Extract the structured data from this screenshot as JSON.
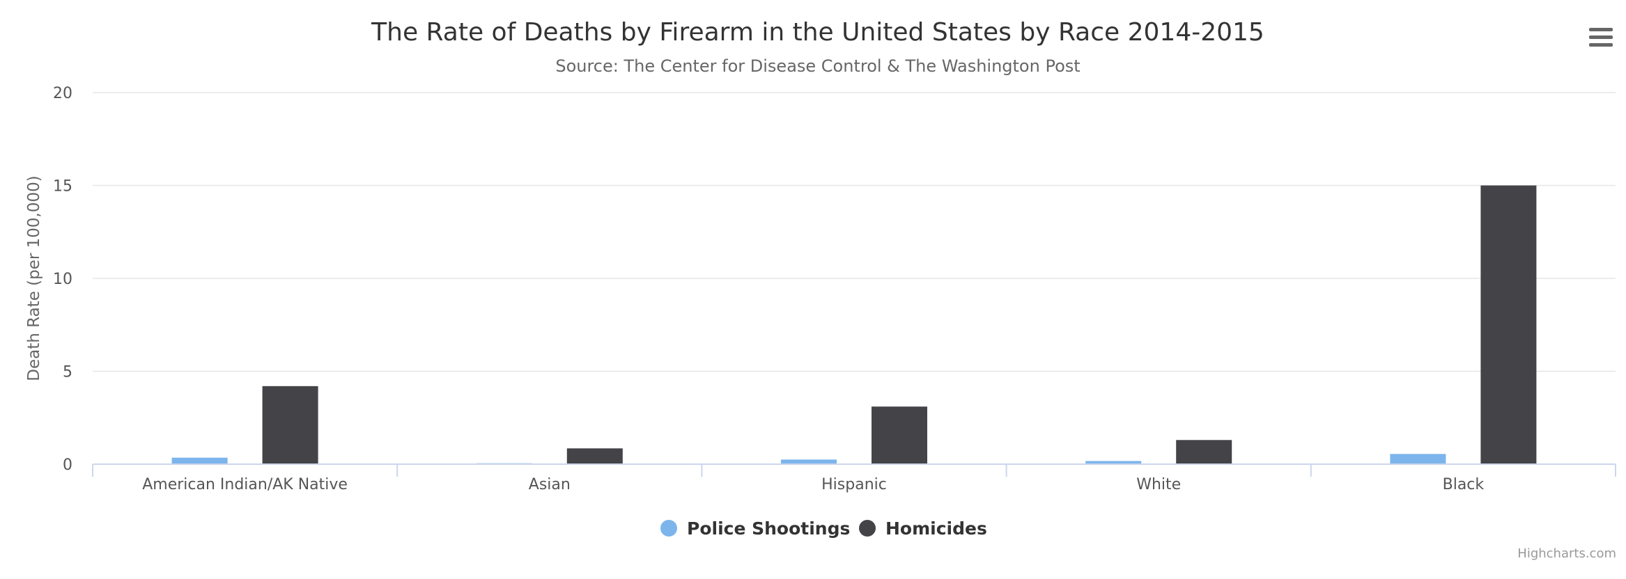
{
  "chart_data": {
    "type": "bar",
    "title": "The Rate of Deaths by Firearm in the United States by Race 2014-2015",
    "subtitle": "Source: The Center for Disease Control & The Washington Post",
    "categories": [
      "American Indian/AK Native",
      "Asian",
      "Hispanic",
      "White",
      "Black"
    ],
    "series": [
      {
        "name": "Police Shootings",
        "color": "#7cb5ec",
        "values": [
          0.35,
          0.05,
          0.25,
          0.17,
          0.55
        ]
      },
      {
        "name": "Homicides",
        "color": "#434348",
        "values": [
          4.2,
          0.85,
          3.1,
          1.3,
          15.0
        ]
      }
    ],
    "xlabel": "",
    "ylabel": "Death Rate (per 100,000)",
    "ylim": [
      0,
      20
    ],
    "yticks": [
      0,
      5,
      10,
      15,
      20
    ],
    "grid": true,
    "legend_position": "bottom-center",
    "credits": "Highcharts.com"
  },
  "menu_icon": "hamburger-menu-icon"
}
